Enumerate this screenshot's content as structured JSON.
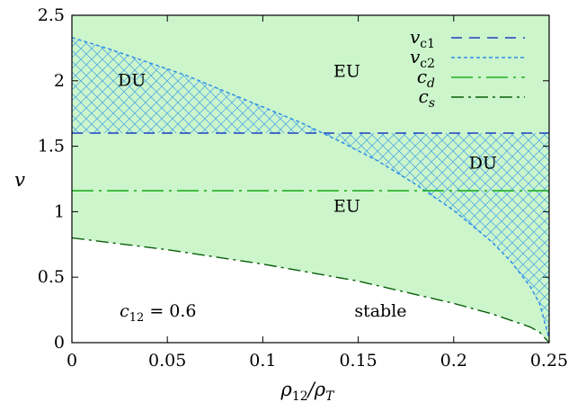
{
  "chart_data": {
    "type": "line",
    "xlabel": "ρ12/ρT",
    "ylabel": "v",
    "xlim": [
      0,
      0.25
    ],
    "ylim": [
      0,
      2.5
    ],
    "x_ticks": [
      "0",
      "0.05",
      "0.1",
      "0.15",
      "0.2",
      "0.25"
    ],
    "y_ticks": [
      "0",
      "0.5",
      "1",
      "1.5",
      "2",
      "2.5"
    ],
    "grid": false,
    "legend_position": "top-right",
    "background_region_color": "#ccf5cc",
    "hatch_color": "#3fa0e8",
    "series": [
      {
        "name": "v_c1",
        "style": "dashed",
        "color": "#1f3fbf",
        "x": [
          0,
          0.25
        ],
        "y": [
          1.6,
          1.6
        ]
      },
      {
        "name": "v_c2",
        "style": "dotted",
        "color": "#2f8fe8",
        "x": [
          0,
          0.02,
          0.04,
          0.06,
          0.08,
          0.1,
          0.12,
          0.14,
          0.16,
          0.18,
          0.2,
          0.22,
          0.23,
          0.24,
          0.245,
          0.25
        ],
        "y": [
          2.33,
          2.24,
          2.14,
          2.04,
          1.92,
          1.8,
          1.68,
          1.54,
          1.39,
          1.21,
          1.01,
          0.77,
          0.62,
          0.43,
          0.3,
          0.03
        ]
      },
      {
        "name": "c_d",
        "style": "long-dash-dot",
        "color": "#22b022",
        "x": [
          0,
          0.25
        ],
        "y": [
          1.16,
          1.16
        ]
      },
      {
        "name": "c_s",
        "style": "dash-dot",
        "color": "#0a5f0a",
        "x": [
          0,
          0.05,
          0.1,
          0.15,
          0.2,
          0.22,
          0.24,
          0.245,
          0.25
        ],
        "y": [
          0.8,
          0.71,
          0.6,
          0.47,
          0.3,
          0.22,
          0.12,
          0.08,
          0.0
        ]
      }
    ],
    "annotations": [
      {
        "text": "DU",
        "x": 0.024,
        "y": 1.96
      },
      {
        "text": "EU",
        "x": 0.137,
        "y": 2.03
      },
      {
        "text": "DU",
        "x": 0.208,
        "y": 1.33
      },
      {
        "text": "EU",
        "x": 0.137,
        "y": 1.0
      },
      {
        "text": "stable",
        "x": 0.148,
        "y": 0.2
      }
    ],
    "parameter_label": "c12 = 0.6",
    "parameter_position": {
      "x": 0.025,
      "y": 0.2
    }
  }
}
